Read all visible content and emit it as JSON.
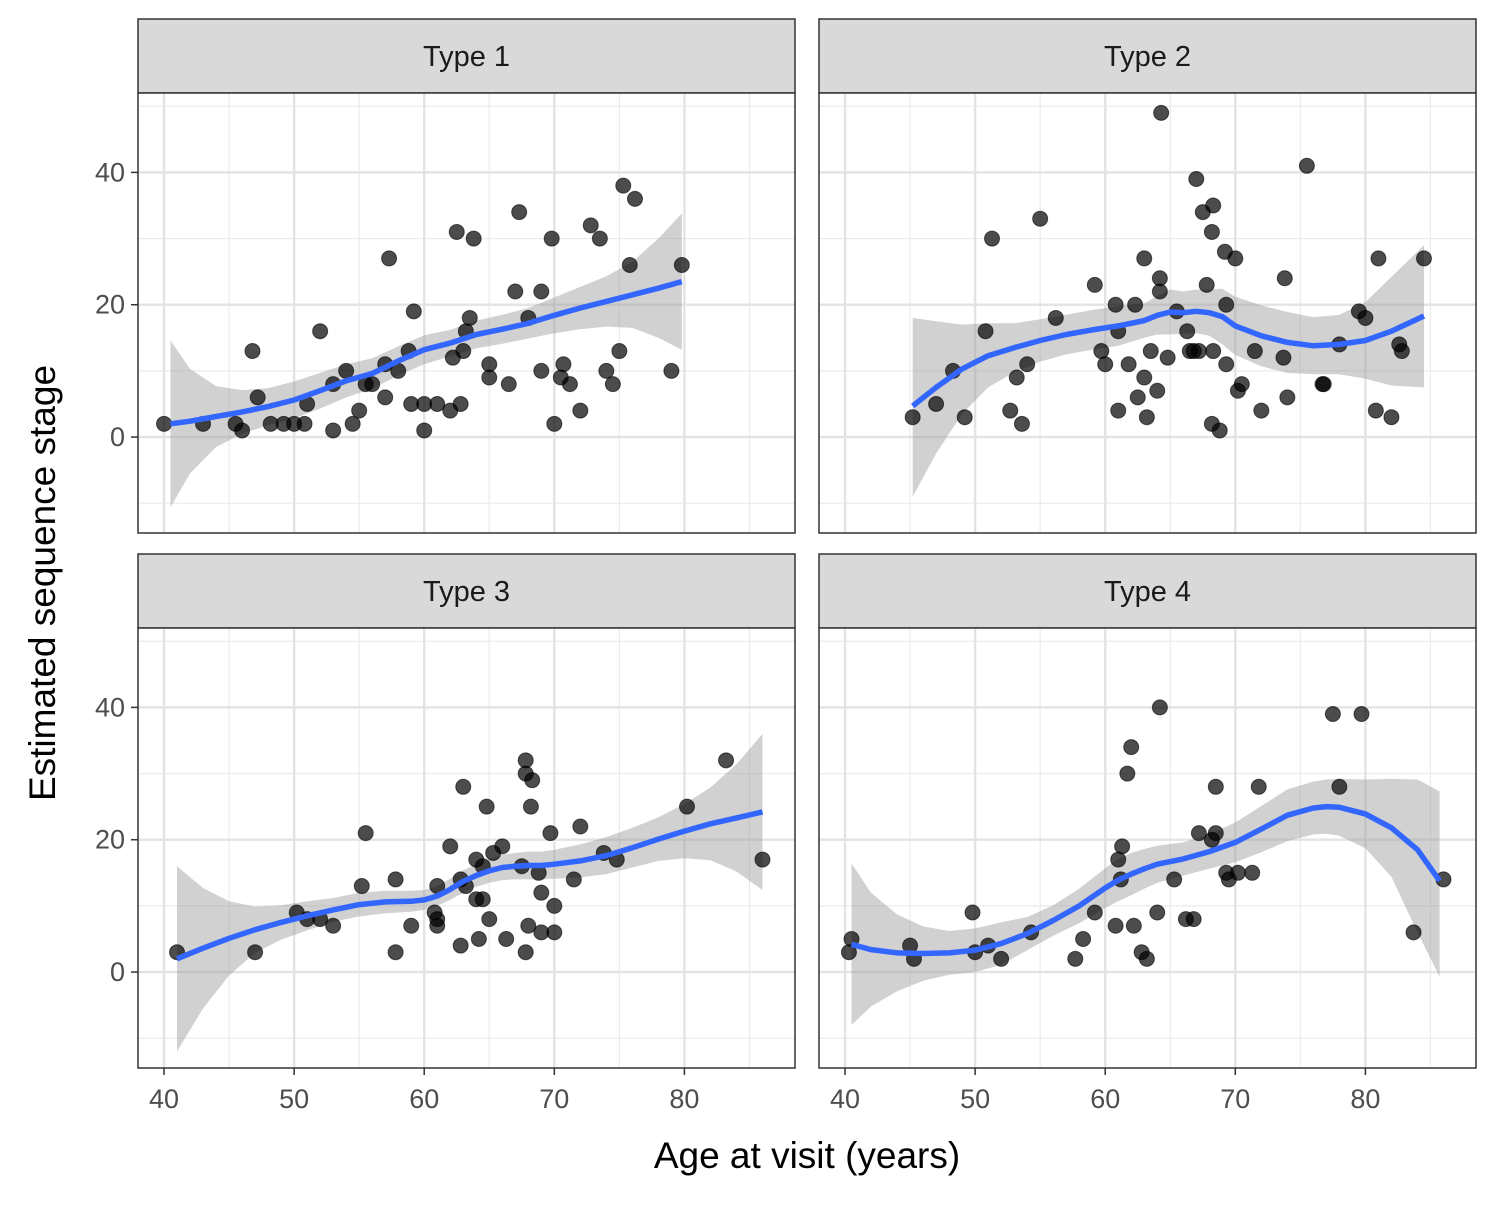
{
  "chart_data": {
    "type": "scatter",
    "layout": "facet-grid-2x2",
    "xlabel": "Age at visit (years)",
    "ylabel": "Estimated sequence stage",
    "xlim": [
      38,
      88.5
    ],
    "ylim": [
      -14.5,
      52
    ],
    "x_ticks": [
      40,
      50,
      60,
      70,
      80
    ],
    "y_ticks": [
      0,
      20,
      40
    ],
    "grid": true,
    "point_color": "#000000",
    "point_opacity": 0.7,
    "smooth_color": "#3366FF",
    "ribbon_color": "#999999",
    "ribbon_opacity": 0.45,
    "strip_fill": "#D9D9D9",
    "panels": [
      {
        "label": "Type 1",
        "points": [
          [
            40,
            2
          ],
          [
            43,
            2
          ],
          [
            45.5,
            2
          ],
          [
            46,
            1
          ],
          [
            46.8,
            13
          ],
          [
            47.2,
            6
          ],
          [
            48.2,
            2
          ],
          [
            49.2,
            2
          ],
          [
            50,
            2
          ],
          [
            50.8,
            2
          ],
          [
            51,
            5
          ],
          [
            52,
            16
          ],
          [
            53,
            1
          ],
          [
            53,
            8
          ],
          [
            54,
            10
          ],
          [
            54.5,
            2
          ],
          [
            55,
            4
          ],
          [
            55.5,
            8
          ],
          [
            56,
            8
          ],
          [
            57,
            11
          ],
          [
            57,
            6
          ],
          [
            57.3,
            27
          ],
          [
            58,
            10
          ],
          [
            58.8,
            13
          ],
          [
            59,
            5
          ],
          [
            59.2,
            19
          ],
          [
            60,
            5
          ],
          [
            60,
            1
          ],
          [
            61,
            5
          ],
          [
            62,
            4
          ],
          [
            62.2,
            12
          ],
          [
            62.5,
            31
          ],
          [
            62.8,
            5
          ],
          [
            63,
            13
          ],
          [
            63.2,
            16
          ],
          [
            63.5,
            18
          ],
          [
            63.8,
            30
          ],
          [
            65,
            11
          ],
          [
            65,
            9
          ],
          [
            66.5,
            8
          ],
          [
            67,
            22
          ],
          [
            67.3,
            34
          ],
          [
            68,
            18
          ],
          [
            69,
            22
          ],
          [
            69,
            10
          ],
          [
            69.8,
            30
          ],
          [
            70,
            2
          ],
          [
            70.5,
            9
          ],
          [
            70.7,
            11
          ],
          [
            71.2,
            8
          ],
          [
            72,
            4
          ],
          [
            72.8,
            32
          ],
          [
            73.5,
            30
          ],
          [
            74,
            10
          ],
          [
            74.5,
            8
          ],
          [
            75,
            13
          ],
          [
            75.3,
            38
          ],
          [
            75.8,
            26
          ],
          [
            76.2,
            36
          ],
          [
            79,
            10
          ],
          [
            79.8,
            26
          ]
        ],
        "smooth_x": [
          40.5,
          42,
          44,
          46,
          48,
          50,
          52,
          54,
          56,
          58,
          60,
          62,
          64,
          66,
          68,
          70,
          72,
          74,
          76,
          78,
          79.8
        ],
        "smooth_y": [
          2,
          2.4,
          3.1,
          3.8,
          4.6,
          5.6,
          7,
          8.5,
          9.6,
          11.5,
          13.2,
          14.2,
          15.5,
          16.3,
          17.2,
          18.4,
          19.5,
          20.5,
          21.5,
          22.5,
          23.5
        ],
        "ribbon_lower": [
          -10.6,
          -5.5,
          -1.5,
          0.5,
          1.8,
          2.8,
          4.3,
          6,
          7.3,
          9.3,
          11,
          12.2,
          13.4,
          14.1,
          14.9,
          15.7,
          16.3,
          16.7,
          16.5,
          15,
          13.2
        ],
        "ribbon_upper": [
          14.6,
          10.3,
          7.7,
          7.1,
          7.4,
          8.4,
          9.7,
          11,
          11.9,
          13.7,
          15.4,
          16.2,
          17.6,
          18.5,
          19.5,
          21.1,
          22.7,
          24.3,
          26.5,
          30,
          33.8
        ]
      },
      {
        "label": "Type 2",
        "points": [
          [
            45.2,
            3
          ],
          [
            47,
            5
          ],
          [
            48.3,
            10
          ],
          [
            49.2,
            3
          ],
          [
            50.8,
            16
          ],
          [
            51.3,
            30
          ],
          [
            52.7,
            4
          ],
          [
            53.2,
            9
          ],
          [
            53.6,
            2
          ],
          [
            54,
            11
          ],
          [
            55,
            33
          ],
          [
            56.2,
            18
          ],
          [
            59.2,
            23
          ],
          [
            59.7,
            13
          ],
          [
            60,
            11
          ],
          [
            60.8,
            20
          ],
          [
            61,
            4
          ],
          [
            61,
            16
          ],
          [
            61.8,
            11
          ],
          [
            62.3,
            20
          ],
          [
            62.5,
            6
          ],
          [
            63,
            9
          ],
          [
            63,
            27
          ],
          [
            63.2,
            3
          ],
          [
            63.5,
            13
          ],
          [
            64,
            7
          ],
          [
            64.2,
            24
          ],
          [
            64.3,
            49
          ],
          [
            64.2,
            22
          ],
          [
            64.8,
            12
          ],
          [
            65.5,
            19
          ],
          [
            66.3,
            16
          ],
          [
            66.5,
            13
          ],
          [
            66.8,
            13
          ],
          [
            67,
            39
          ],
          [
            67.2,
            13
          ],
          [
            67.5,
            34
          ],
          [
            67.8,
            23
          ],
          [
            68.2,
            31
          ],
          [
            68.3,
            35
          ],
          [
            68.2,
            2
          ],
          [
            68.3,
            13
          ],
          [
            68.8,
            1
          ],
          [
            69.2,
            28
          ],
          [
            69.3,
            20
          ],
          [
            69.3,
            11
          ],
          [
            70,
            27
          ],
          [
            70.2,
            7
          ],
          [
            70.5,
            8
          ],
          [
            71.5,
            13
          ],
          [
            72,
            4
          ],
          [
            73.7,
            12
          ],
          [
            73.8,
            24
          ],
          [
            74,
            6
          ],
          [
            75.5,
            41
          ],
          [
            76.7,
            8
          ],
          [
            76.8,
            8
          ],
          [
            78,
            14
          ],
          [
            79.5,
            19
          ],
          [
            80,
            18
          ],
          [
            80.8,
            4
          ],
          [
            81,
            27
          ],
          [
            82,
            3
          ],
          [
            82.6,
            14
          ],
          [
            82.8,
            13
          ],
          [
            84.5,
            27
          ]
        ],
        "smooth_x": [
          45.2,
          47,
          49,
          51,
          53,
          55,
          57,
          59,
          61,
          63,
          64,
          65,
          66,
          67,
          68,
          69,
          70,
          72,
          74,
          76,
          78,
          80,
          82,
          84.5
        ],
        "smooth_y": [
          4.7,
          7.5,
          10.3,
          12.3,
          13.5,
          14.6,
          15.5,
          16.2,
          16.8,
          17.6,
          18.4,
          18.9,
          18.8,
          19,
          18.8,
          18.2,
          16.8,
          15.3,
          14.3,
          13.8,
          14,
          14.6,
          16,
          18.3
        ],
        "ribbon_lower": [
          -9,
          -2.5,
          3.5,
          7.5,
          9.8,
          11.4,
          12.5,
          13.2,
          13.8,
          15,
          15.5,
          15.5,
          15.6,
          15.7,
          15.3,
          14,
          12.4,
          10.7,
          9.7,
          9.5,
          9.5,
          8.8,
          7.8,
          7.5
        ],
        "ribbon_upper": [
          18,
          17.5,
          17,
          17.2,
          17.2,
          17.8,
          18.5,
          19.2,
          19.8,
          20.2,
          21.3,
          22.3,
          22,
          22.3,
          22.3,
          22.4,
          21.2,
          19.9,
          18.9,
          18.1,
          18.5,
          20.4,
          24.2,
          29
        ]
      },
      {
        "label": "Type 3",
        "points": [
          [
            41,
            3
          ],
          [
            47,
            3
          ],
          [
            50.2,
            9
          ],
          [
            51,
            8
          ],
          [
            52,
            8
          ],
          [
            53,
            7
          ],
          [
            55.2,
            13
          ],
          [
            55.5,
            21
          ],
          [
            57.8,
            14
          ],
          [
            57.8,
            3
          ],
          [
            59,
            7
          ],
          [
            60.8,
            9
          ],
          [
            61,
            13
          ],
          [
            61,
            8
          ],
          [
            61,
            7
          ],
          [
            62,
            19
          ],
          [
            62.8,
            14
          ],
          [
            62.8,
            4
          ],
          [
            63,
            28
          ],
          [
            63.2,
            13
          ],
          [
            64,
            17
          ],
          [
            64,
            11
          ],
          [
            64.2,
            5
          ],
          [
            64.5,
            16
          ],
          [
            64.5,
            11
          ],
          [
            64.8,
            25
          ],
          [
            65,
            8
          ],
          [
            65.3,
            18
          ],
          [
            66,
            19
          ],
          [
            66.3,
            5
          ],
          [
            67.5,
            16
          ],
          [
            67.8,
            30
          ],
          [
            67.8,
            32
          ],
          [
            67.8,
            3
          ],
          [
            68,
            7
          ],
          [
            68.2,
            25
          ],
          [
            68.3,
            29
          ],
          [
            68.8,
            15
          ],
          [
            69,
            12
          ],
          [
            69,
            6
          ],
          [
            69.7,
            21
          ],
          [
            70,
            10
          ],
          [
            70,
            6
          ],
          [
            71.5,
            14
          ],
          [
            72,
            22
          ],
          [
            73.8,
            18
          ],
          [
            74.8,
            17
          ],
          [
            80.2,
            25
          ],
          [
            83.2,
            32
          ],
          [
            86,
            17
          ]
        ],
        "smooth_x": [
          41,
          43,
          45,
          47,
          49,
          51,
          53,
          55,
          57,
          59,
          60,
          61,
          62,
          63,
          64,
          65,
          66,
          67,
          68,
          69,
          70,
          72,
          74,
          76,
          78,
          80,
          82,
          84,
          86
        ],
        "smooth_y": [
          2,
          3.6,
          5.1,
          6.4,
          7.5,
          8.5,
          9.4,
          10.2,
          10.6,
          10.7,
          10.9,
          11.5,
          12.5,
          13.7,
          14.6,
          15.3,
          15.8,
          16,
          16.1,
          16.1,
          16.3,
          16.8,
          17.6,
          18.8,
          20.1,
          21.3,
          22.4,
          23.3,
          24.2
        ],
        "ribbon_lower": [
          -12,
          -5.5,
          -0.5,
          2.9,
          4.9,
          6.3,
          7.6,
          8.4,
          8.9,
          9.1,
          9.4,
          10,
          10.9,
          12,
          12.9,
          13.5,
          13.9,
          14,
          14,
          14,
          14.1,
          14.3,
          14.8,
          15.8,
          16.8,
          17.2,
          16.9,
          15.2,
          12.4
        ],
        "ribbon_upper": [
          16,
          12.7,
          10.7,
          9.9,
          10.1,
          10.7,
          11.2,
          12,
          12.3,
          12.3,
          12.4,
          13,
          14.1,
          15.4,
          16.3,
          17.1,
          17.7,
          18,
          18.2,
          18.2,
          18.5,
          19.3,
          20.4,
          21.8,
          23.4,
          25.4,
          27.9,
          31.4,
          36
        ]
      },
      {
        "label": "Type 4",
        "points": [
          [
            40.3,
            3
          ],
          [
            40.5,
            5
          ],
          [
            45,
            4
          ],
          [
            45.3,
            2
          ],
          [
            49.8,
            9
          ],
          [
            50,
            3
          ],
          [
            51,
            4
          ],
          [
            52,
            2
          ],
          [
            54.3,
            6
          ],
          [
            57.7,
            2
          ],
          [
            58.3,
            5
          ],
          [
            59.2,
            9
          ],
          [
            60.8,
            7
          ],
          [
            61,
            17
          ],
          [
            61.2,
            14
          ],
          [
            61.3,
            19
          ],
          [
            61.7,
            30
          ],
          [
            62,
            34
          ],
          [
            62.2,
            7
          ],
          [
            62.8,
            3
          ],
          [
            63.2,
            2
          ],
          [
            64,
            9
          ],
          [
            64.2,
            40
          ],
          [
            65.3,
            14
          ],
          [
            66.2,
            8
          ],
          [
            66.8,
            8
          ],
          [
            67.2,
            21
          ],
          [
            68.2,
            20
          ],
          [
            68.5,
            21
          ],
          [
            68.5,
            28
          ],
          [
            69.3,
            15
          ],
          [
            69.5,
            14
          ],
          [
            70.2,
            15
          ],
          [
            71.3,
            15
          ],
          [
            71.8,
            28
          ],
          [
            77.5,
            39
          ],
          [
            78,
            28
          ],
          [
            79.7,
            39
          ],
          [
            83.7,
            6
          ],
          [
            86,
            14
          ]
        ],
        "smooth_x": [
          40.5,
          42,
          44,
          46,
          48,
          50,
          52,
          54,
          56,
          58,
          60,
          61,
          62,
          63,
          64,
          66,
          68,
          70,
          72,
          74,
          76,
          77,
          78,
          80,
          82,
          84,
          85.7
        ],
        "smooth_y": [
          4.2,
          3.4,
          2.9,
          2.8,
          2.9,
          3.3,
          4.3,
          5.8,
          7.8,
          10,
          12.7,
          13.9,
          14.8,
          15.6,
          16.3,
          17.1,
          18.2,
          19.6,
          21.6,
          23.7,
          24.8,
          25,
          24.9,
          23.9,
          21.8,
          18.5,
          13.8
        ],
        "ribbon_lower": [
          -8,
          -5.2,
          -2.9,
          -1.3,
          -0.4,
          0,
          1.1,
          3.3,
          5.5,
          7.4,
          9.7,
          10.7,
          11.6,
          12.6,
          13.5,
          14.6,
          15.6,
          16.6,
          18.1,
          19.8,
          20.8,
          20.9,
          20.6,
          18.7,
          14.4,
          6,
          -0.7
        ],
        "ribbon_upper": [
          16.4,
          12,
          8.7,
          6.9,
          6.2,
          6.6,
          7.5,
          8.3,
          10.1,
          12.6,
          15.7,
          17.1,
          18,
          18.6,
          19.1,
          19.6,
          20.8,
          22.6,
          25.1,
          27.6,
          28.8,
          29.1,
          29.2,
          29.1,
          29.2,
          29.1,
          27.3
        ]
      }
    ]
  }
}
